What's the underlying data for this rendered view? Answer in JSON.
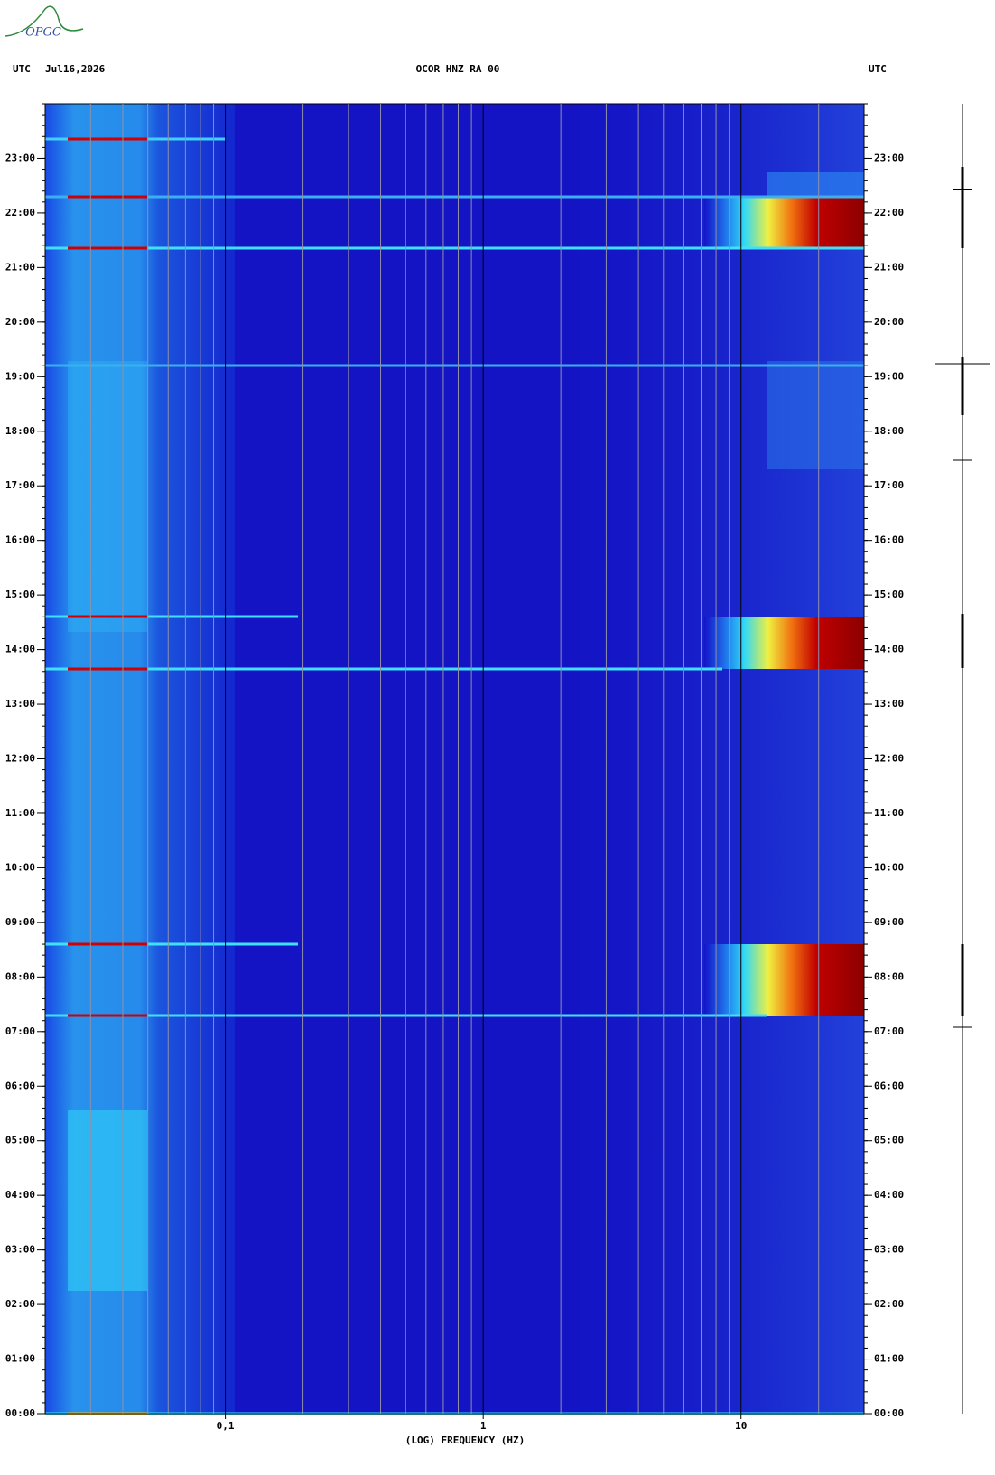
{
  "chart_data": {
    "type": "spectrogram",
    "logo": "OPGC",
    "timezone_label": "UTC",
    "date": "Jul16,2026",
    "title": "OCOR HNZ RA 00",
    "xlabel": "(LOG) FREQUENCY (HZ)",
    "xscale": "log",
    "xlim": [
      0.02,
      30
    ],
    "xticks": [
      {
        "value": 0.1,
        "label": "0,1"
      },
      1,
      10
    ],
    "ylim": [
      0,
      24
    ],
    "yticks": [
      {
        "value": 0,
        "label": "00:00"
      },
      {
        "value": 1,
        "label": "01:00"
      },
      {
        "value": 2,
        "label": "02:00"
      },
      {
        "value": 3,
        "label": "03:00"
      },
      {
        "value": 4,
        "label": "04:00"
      },
      {
        "value": 5,
        "label": "05:00"
      },
      {
        "value": 6,
        "label": "06:00"
      },
      {
        "value": 7,
        "label": "07:00"
      },
      {
        "value": 8,
        "label": "08:00"
      },
      {
        "value": 9,
        "label": "09:00"
      },
      {
        "value": 10,
        "label": "10:00"
      },
      {
        "value": 11,
        "label": "11:00"
      },
      {
        "value": 12,
        "label": "12:00"
      },
      {
        "value": 13,
        "label": "13:00"
      },
      {
        "value": 14,
        "label": "14:00"
      },
      {
        "value": 15,
        "label": "15:00"
      },
      {
        "value": 16,
        "label": "16:00"
      },
      {
        "value": 17,
        "label": "17:00"
      },
      {
        "value": 18,
        "label": "18:00"
      },
      {
        "value": 19,
        "label": "19:00"
      },
      {
        "value": 20,
        "label": "20:00"
      },
      {
        "value": 21,
        "label": "21:00"
      },
      {
        "value": 22,
        "label": "22:00"
      },
      {
        "value": 23,
        "label": "23:00"
      }
    ],
    "grid": true
  }
}
